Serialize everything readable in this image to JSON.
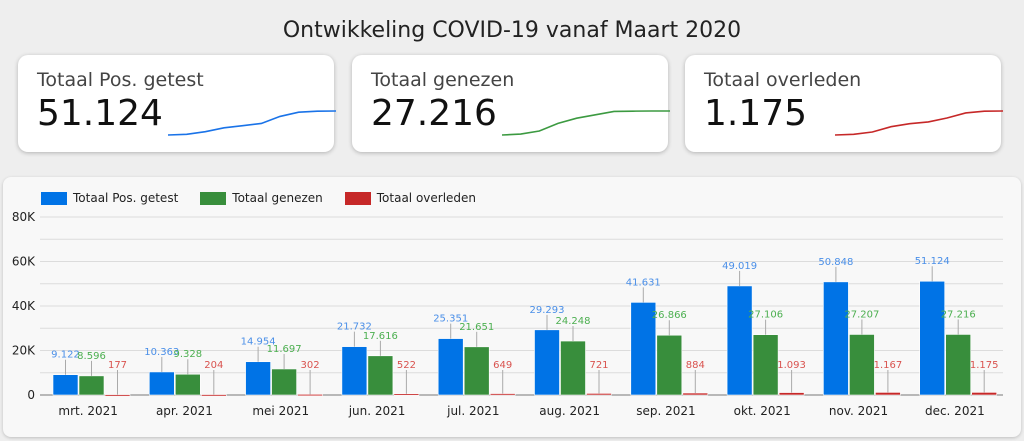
{
  "title": "Ontwikkeling COVID-19 vanaf Maart 2020",
  "cards": [
    {
      "label": "Totaal Pos. getest",
      "value": "51.124",
      "color": "#1a73e8"
    },
    {
      "label": "Totaal genezen",
      "value": "27.216",
      "color": "#3c9a41"
    },
    {
      "label": "Totaal overleden",
      "value": "1.175",
      "color": "#c62828"
    }
  ],
  "chart_data": {
    "type": "bar",
    "categories": [
      "mrt. 2021",
      "apr. 2021",
      "mei 2021",
      "jun. 2021",
      "jul. 2021",
      "aug. 2021",
      "sep. 2021",
      "okt. 2021",
      "nov. 2021",
      "dec. 2021"
    ],
    "series": [
      {
        "name": "Totaal Pos. getest",
        "color": "#0073e6",
        "label_color": "#4a8fe8",
        "values": [
          9122,
          10363,
          14954,
          21732,
          25351,
          29293,
          41631,
          49019,
          50848,
          51124
        ],
        "labels": [
          "9.122",
          "10.363",
          "14.954",
          "21.732",
          "25.351",
          "29.293",
          "41.631",
          "49.019",
          "50.848",
          "51.124"
        ]
      },
      {
        "name": "Totaal genezen",
        "color": "#388e3c",
        "label_color": "#4caf50",
        "values": [
          8596,
          9328,
          11697,
          17616,
          21651,
          24248,
          26866,
          27106,
          27207,
          27216
        ],
        "labels": [
          "8.596",
          "9.328",
          "11.697",
          "17.616",
          "21.651",
          "24.248",
          "26.866",
          "27.106",
          "27.207",
          "27.216"
        ]
      },
      {
        "name": "Totaal overleden",
        "color": "#c62828",
        "label_color": "#d9534f",
        "values": [
          177,
          204,
          302,
          522,
          649,
          721,
          884,
          1093,
          1167,
          1175
        ],
        "labels": [
          "177",
          "204",
          "302",
          "522",
          "649",
          "721",
          "884",
          "1.093",
          "1.167",
          "1.175"
        ]
      }
    ],
    "yticks": [
      0,
      20000,
      40000,
      60000,
      80000
    ],
    "ytick_labels": [
      "0",
      "20K",
      "40K",
      "60K",
      "80K"
    ],
    "ylim": [
      0,
      80000
    ],
    "legend": "top-left",
    "grid": true
  }
}
